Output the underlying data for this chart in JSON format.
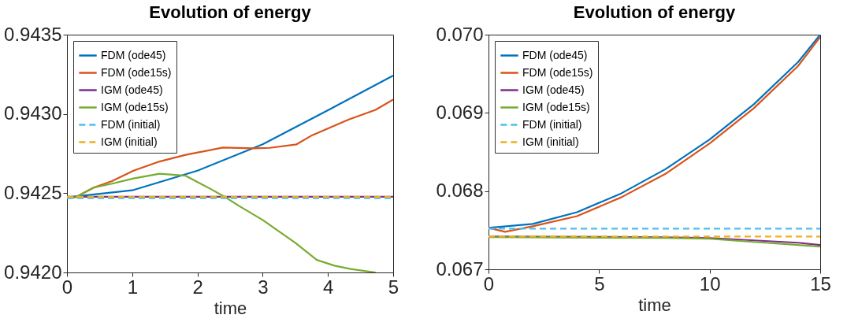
{
  "chart_data": [
    {
      "type": "line",
      "title": "Evolution of energy",
      "xlabel": "time",
      "xlim": [
        0,
        5
      ],
      "xticks": [
        0,
        1,
        2,
        3,
        4,
        5
      ],
      "ylim": [
        0.942,
        0.9435
      ],
      "yticks": [
        {
          "value": 0.942,
          "label": "0.9420"
        },
        0.9425,
        {
          "value": 0.943,
          "label": "0.9430"
        },
        0.9435
      ],
      "grid": false,
      "legend": "top left",
      "series": [
        {
          "name": "FDM (ode45)",
          "color": "#0072bd",
          "line_style": "solid",
          "x": [
            0,
            1,
            2,
            3,
            4,
            5
          ],
          "values": [
            0.942474,
            0.942518,
            0.942642,
            0.942808,
            0.943023,
            0.943242
          ]
        },
        {
          "name": "FDM (ode15s)",
          "color": "#d95319",
          "line_style": "solid",
          "x": [
            0,
            0.13,
            0.41,
            0.69,
            1.02,
            1.42,
            1.82,
            2.39,
            2.87,
            3.11,
            3.52,
            3.76,
            4.32,
            4.73,
            5
          ],
          "values": [
            0.942474,
            0.942474,
            0.942535,
            0.942576,
            0.942642,
            0.9427,
            0.942742,
            0.942788,
            0.942783,
            0.942786,
            0.942808,
            0.942866,
            0.942965,
            0.943026,
            0.94309
          ]
        },
        {
          "name": "IGM  (ode45)",
          "color": "#7e2f8e",
          "line_style": "solid",
          "x": [
            0,
            5
          ],
          "values": [
            0.942477,
            0.942477
          ]
        },
        {
          "name": "IGM  (ode15s)",
          "color": "#77ac30",
          "line_style": "solid",
          "x": [
            0,
            0.13,
            0.41,
            0.69,
            1.02,
            1.42,
            1.82,
            2.2,
            2.43,
            2.64,
            3.0,
            3.5,
            3.83,
            4.1,
            4.35,
            4.73
          ],
          "values": [
            0.942474,
            0.942474,
            0.942535,
            0.94256,
            0.942593,
            0.942623,
            0.94261,
            0.942527,
            0.942474,
            0.942419,
            0.942331,
            0.942187,
            0.942079,
            0.942043,
            0.942022,
            0.942
          ]
        },
        {
          "name": "FDM (initial)",
          "color": "#4dbeee",
          "line_style": "dashed",
          "x": [
            0,
            5
          ],
          "values": [
            0.942469,
            0.942469
          ]
        },
        {
          "name": "IGM  (initial)",
          "color": "#edb120",
          "line_style": "dashed",
          "x": [
            0,
            5
          ],
          "values": [
            0.942477,
            0.942477
          ]
        }
      ]
    },
    {
      "type": "line",
      "title": "Evolution of energy",
      "xlabel": "time",
      "xlim": [
        0,
        15
      ],
      "xticks": [
        0,
        5,
        10,
        15
      ],
      "ylim": [
        0.067,
        0.07
      ],
      "yticks": [
        0.067,
        0.068,
        0.069,
        {
          "value": 0.07,
          "label": "0.070"
        }
      ],
      "grid": false,
      "legend": "top left",
      "series": [
        {
          "name": "FDM (ode45)",
          "color": "#0072bd",
          "line_style": "solid",
          "x": [
            0,
            2,
            4,
            6,
            8,
            10,
            12,
            14,
            15
          ],
          "values": [
            0.06753,
            0.06758,
            0.06773,
            0.06797,
            0.06828,
            0.06866,
            0.06911,
            0.06965,
            0.07
          ]
        },
        {
          "name": "FDM (ode15s)",
          "color": "#d95319",
          "line_style": "solid",
          "x": [
            0,
            0.75,
            2,
            4,
            6,
            8,
            10,
            12,
            14,
            15
          ],
          "values": [
            0.06753,
            0.06748,
            0.06755,
            0.06768,
            0.06792,
            0.06822,
            0.06861,
            0.06906,
            0.0696,
            0.06997
          ]
        },
        {
          "name": "IGM  (ode45)",
          "color": "#7e2f8e",
          "line_style": "solid",
          "x": [
            0,
            8,
            10,
            12,
            14,
            15
          ],
          "values": [
            0.06742,
            0.06741,
            0.0674,
            0.06737,
            0.06734,
            0.06731
          ]
        },
        {
          "name": "IGM  (ode15s)",
          "color": "#77ac30",
          "line_style": "solid",
          "x": [
            0,
            8,
            10,
            12,
            14,
            15
          ],
          "values": [
            0.06741,
            0.0674,
            0.06739,
            0.06735,
            0.06731,
            0.06729
          ]
        },
        {
          "name": "FDM (initial)",
          "color": "#4dbeee",
          "line_style": "dashed",
          "x": [
            0,
            15
          ],
          "values": [
            0.06752,
            0.06752
          ]
        },
        {
          "name": "IGM  (initial)",
          "color": "#edb120",
          "line_style": "dashed",
          "x": [
            0,
            15
          ],
          "values": [
            0.06742,
            0.06742
          ]
        }
      ]
    }
  ]
}
